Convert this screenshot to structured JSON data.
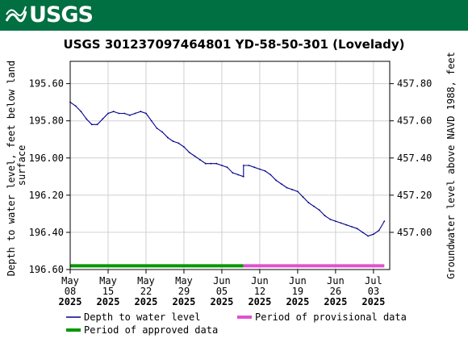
{
  "header": {
    "logo_text": "USGS"
  },
  "colors": {
    "banner": "#006f41",
    "depth_line": "#00008b",
    "approved": "#009900",
    "provisional": "#e050d0",
    "grid": "#d0d0d0"
  },
  "chart_data": {
    "type": "line",
    "title": "USGS 301237097464801 YD-58-50-301 (Lovelady)",
    "ylabel_left": "Depth to water level, feet below land surface",
    "ylabel_left_lines": [
      "Depth to water level, feet below land",
      "surface"
    ],
    "ylabel_right": "Groundwater level above NAVD 1988, feet",
    "x_ticks": [
      {
        "date": "2025-05-08",
        "lines": [
          "May",
          "08",
          "2025"
        ]
      },
      {
        "date": "2025-05-15",
        "lines": [
          "May",
          "15",
          "2025"
        ]
      },
      {
        "date": "2025-05-22",
        "lines": [
          "May",
          "22",
          "2025"
        ]
      },
      {
        "date": "2025-05-29",
        "lines": [
          "May",
          "29",
          "2025"
        ]
      },
      {
        "date": "2025-06-05",
        "lines": [
          "Jun",
          "05",
          "2025"
        ]
      },
      {
        "date": "2025-06-12",
        "lines": [
          "Jun",
          "12",
          "2025"
        ]
      },
      {
        "date": "2025-06-19",
        "lines": [
          "Jun",
          "19",
          "2025"
        ]
      },
      {
        "date": "2025-06-26",
        "lines": [
          "Jun",
          "26",
          "2025"
        ]
      },
      {
        "date": "2025-07-03",
        "lines": [
          "Jul",
          "03",
          "2025"
        ]
      }
    ],
    "xlim": [
      "2025-05-08",
      "2025-07-06"
    ],
    "y_left_ticks": [
      "195.60",
      "195.80",
      "196.00",
      "196.20",
      "196.40",
      "196.60"
    ],
    "y_left_ticks_values": [
      195.6,
      195.8,
      196.0,
      196.2,
      196.4,
      196.6
    ],
    "ylim_left": [
      195.48,
      196.6
    ],
    "y_right_ticks": [
      "457.80",
      "457.60",
      "457.40",
      "457.20",
      "457.00"
    ],
    "y_right_ticks_values": [
      457.8,
      457.6,
      457.4,
      457.2,
      457.0
    ],
    "right_axis_offset": 653.4,
    "grid": true,
    "series": [
      {
        "name": "Depth to water level",
        "points": [
          [
            "2025-05-08",
            195.7
          ],
          [
            "2025-05-09",
            195.72
          ],
          [
            "2025-05-10",
            195.75
          ],
          [
            "2025-05-11",
            195.79
          ],
          [
            "2025-05-12",
            195.82
          ],
          [
            "2025-05-13",
            195.82
          ],
          [
            "2025-05-14",
            195.79
          ],
          [
            "2025-05-15",
            195.76
          ],
          [
            "2025-05-16",
            195.75
          ],
          [
            "2025-05-17",
            195.76
          ],
          [
            "2025-05-18",
            195.76
          ],
          [
            "2025-05-19",
            195.77
          ],
          [
            "2025-05-20",
            195.76
          ],
          [
            "2025-05-21",
            195.75
          ],
          [
            "2025-05-22",
            195.76
          ],
          [
            "2025-05-23",
            195.8
          ],
          [
            "2025-05-24",
            195.84
          ],
          [
            "2025-05-25",
            195.86
          ],
          [
            "2025-05-26",
            195.89
          ],
          [
            "2025-05-27",
            195.91
          ],
          [
            "2025-05-28",
            195.92
          ],
          [
            "2025-05-29",
            195.94
          ],
          [
            "2025-05-30",
            195.97
          ],
          [
            "2025-05-31",
            195.99
          ],
          [
            "2025-06-01",
            196.01
          ],
          [
            "2025-06-02",
            196.03
          ],
          [
            "2025-06-03",
            196.03
          ],
          [
            "2025-06-04",
            196.03
          ],
          [
            "2025-06-05",
            196.04
          ],
          [
            "2025-06-06",
            196.05
          ],
          [
            "2025-06-07",
            196.08
          ],
          [
            "2025-06-08",
            196.09
          ],
          [
            "2025-06-09",
            196.1
          ],
          [
            "2025-06-09",
            196.04
          ],
          [
            "2025-06-10",
            196.04
          ],
          [
            "2025-06-11",
            196.05
          ],
          [
            "2025-06-12",
            196.06
          ],
          [
            "2025-06-13",
            196.07
          ],
          [
            "2025-06-14",
            196.09
          ],
          [
            "2025-06-15",
            196.12
          ],
          [
            "2025-06-16",
            196.14
          ],
          [
            "2025-06-17",
            196.16
          ],
          [
            "2025-06-18",
            196.17
          ],
          [
            "2025-06-19",
            196.18
          ],
          [
            "2025-06-20",
            196.21
          ],
          [
            "2025-06-21",
            196.24
          ],
          [
            "2025-06-22",
            196.26
          ],
          [
            "2025-06-23",
            196.28
          ],
          [
            "2025-06-24",
            196.31
          ],
          [
            "2025-06-25",
            196.33
          ],
          [
            "2025-06-26",
            196.34
          ],
          [
            "2025-06-27",
            196.35
          ],
          [
            "2025-06-28",
            196.36
          ],
          [
            "2025-06-29",
            196.37
          ],
          [
            "2025-06-30",
            196.38
          ],
          [
            "2025-07-01",
            196.4
          ],
          [
            "2025-07-02",
            196.42
          ],
          [
            "2025-07-03",
            196.41
          ],
          [
            "2025-07-04",
            196.39
          ],
          [
            "2025-07-05",
            196.34
          ]
        ]
      }
    ],
    "periods": [
      {
        "name": "Period of approved data",
        "start": "2025-05-08",
        "end": "2025-06-09"
      },
      {
        "name": "Period of provisional data",
        "start": "2025-06-09",
        "end": "2025-07-05"
      }
    ],
    "period_bar_value": 196.58,
    "legend": {
      "placement": "bottom",
      "items": [
        {
          "label": "Depth to water level",
          "kind": "line",
          "color": "#00008b"
        },
        {
          "label": "Period of provisional data",
          "kind": "bar",
          "color": "#e050d0"
        },
        {
          "label": "Period of approved data",
          "kind": "bar",
          "color": "#009900"
        }
      ]
    }
  }
}
